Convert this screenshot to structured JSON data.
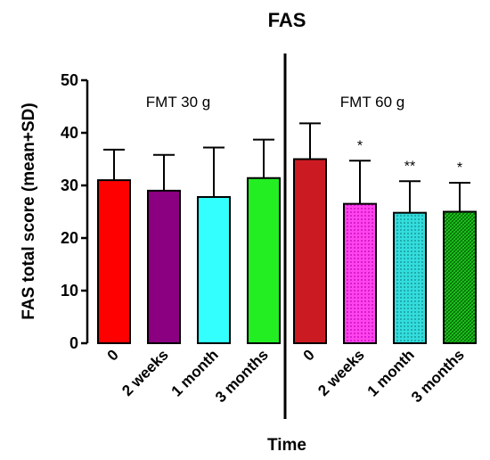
{
  "chart_data": {
    "type": "bar",
    "title": "FAS",
    "xlabel": "Time",
    "ylabel": "FAS total score (mean+SD)",
    "ylim": [
      0,
      50
    ],
    "yticks": [
      0,
      10,
      20,
      30,
      40,
      50
    ],
    "grid": false,
    "groups": [
      {
        "name": "FMT 30 g",
        "categories": [
          "0",
          "2 weeks",
          "1 month",
          "3 months"
        ],
        "values": [
          31.0,
          29.0,
          27.8,
          31.4
        ],
        "sd": [
          5.8,
          6.8,
          9.4,
          7.3
        ],
        "significance": [
          "",
          "",
          "",
          ""
        ],
        "colors": [
          "#ff0000",
          "#8b0080",
          "#33ffff",
          "#22ee22"
        ],
        "patterns": [
          "solid",
          "solid",
          "solid",
          "solid"
        ]
      },
      {
        "name": "FMT 60 g",
        "categories": [
          "0",
          "2 weeks",
          "1 month",
          "3 months"
        ],
        "values": [
          35.0,
          26.5,
          24.8,
          25.0
        ],
        "sd": [
          6.8,
          8.2,
          6.0,
          5.5
        ],
        "significance": [
          "",
          "*",
          "**",
          "*"
        ],
        "colors": [
          "#cc1a22",
          "#ff44ee",
          "#22cccc",
          "#11bb22"
        ],
        "patterns": [
          "solid",
          "dotted",
          "dotted",
          "hatched"
        ]
      }
    ]
  }
}
